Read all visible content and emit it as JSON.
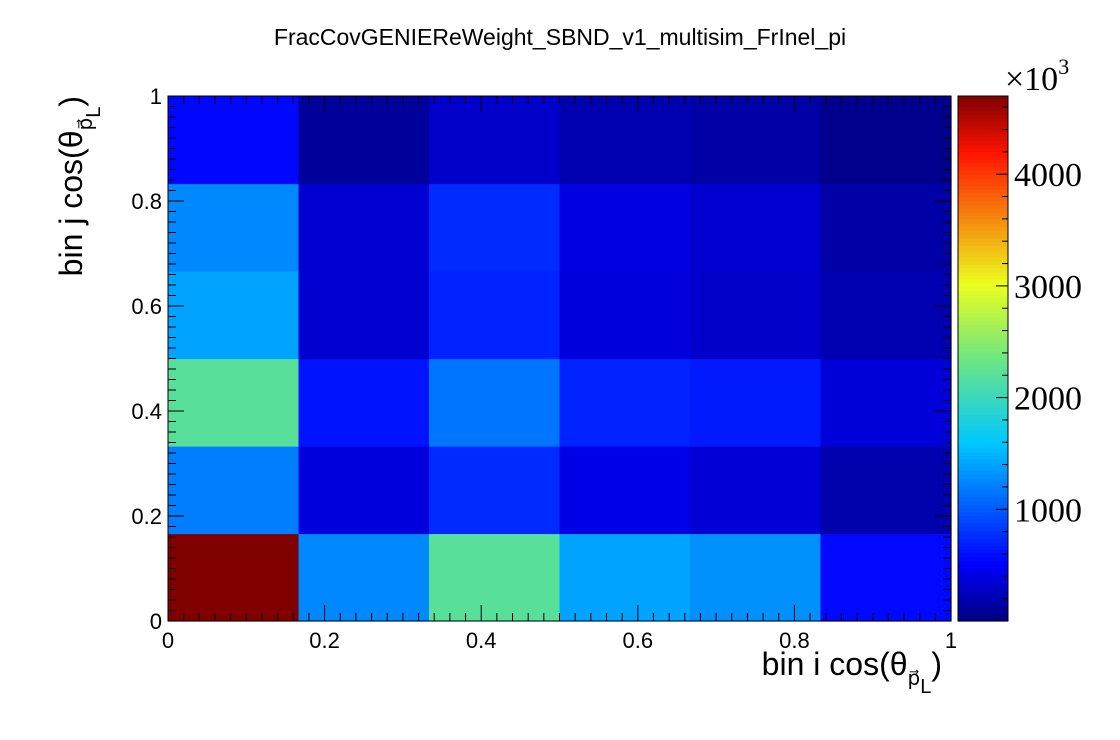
{
  "chart_data": {
    "type": "heatmap",
    "title": "FracCovGENIEReWeight_SBND_v1_multisim_FrInel_pi",
    "xlabel": {
      "main": "bin i cos(θ",
      "sub": "p⃗",
      "subsub": "L",
      "close": ")"
    },
    "ylabel": {
      "main": "bin j cos(θ",
      "sub": "p⃗",
      "subsub": "L",
      "close": ")"
    },
    "x_edges": [
      0,
      0.1667,
      0.3333,
      0.5,
      0.6667,
      0.8333,
      1
    ],
    "y_edges": [
      0,
      0.1667,
      0.3333,
      0.5,
      0.6667,
      0.8333,
      1
    ],
    "xlim": [
      0,
      1
    ],
    "ylim": [
      0,
      1
    ],
    "x_ticks": [
      0,
      0.2,
      0.4,
      0.6,
      0.8,
      1
    ],
    "y_ticks": [
      0,
      0.2,
      0.4,
      0.6,
      0.8,
      1
    ],
    "x_tick_labels": [
      "0",
      "0.2",
      "0.4",
      "0.6",
      "0.8",
      "1"
    ],
    "y_tick_labels": [
      "0",
      "0.2",
      "0.4",
      "0.6",
      "0.8",
      "1"
    ],
    "z_rows_bottom_to_top": [
      [
        4700,
        1250,
        2200,
        1400,
        1300,
        560
      ],
      [
        1200,
        380,
        750,
        420,
        350,
        180
      ],
      [
        2200,
        620,
        1150,
        700,
        650,
        360
      ],
      [
        1400,
        330,
        700,
        380,
        300,
        200
      ],
      [
        1250,
        330,
        750,
        400,
        330,
        160
      ],
      [
        550,
        110,
        300,
        200,
        160,
        50
      ]
    ],
    "zlim": [
      0,
      4700
    ],
    "colorbar": {
      "multiplier": "×10",
      "exponent": "3",
      "ticks": [
        1000,
        2000,
        3000,
        4000
      ],
      "tick_labels": [
        "1000",
        "2000",
        "3000",
        "4000"
      ],
      "colormap": "jet"
    }
  }
}
